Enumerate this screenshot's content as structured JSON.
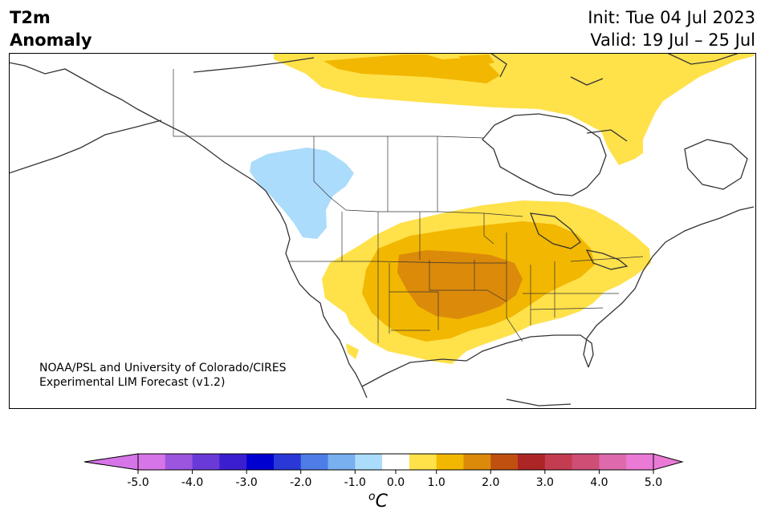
{
  "header": {
    "variable": "T2m",
    "variable_type": "Anomaly",
    "init_label": "Init: Tue 04 Jul 2023",
    "valid_label": "Valid: 19 Jul – 25 Jul"
  },
  "credit": {
    "line1": "NOAA/PSL and University of Colorado/CIRES",
    "line2": "Experimental LIM Forecast (v1.2)"
  },
  "colorbar": {
    "units_base": "C",
    "units_sup": "o",
    "tick_labels": [
      "-5.0",
      "-4.0",
      "-3.0",
      "-2.0",
      "-1.0",
      "0.0",
      "1.0",
      "2.0",
      "3.0",
      "4.0",
      "5.0"
    ],
    "levels": [
      -5.0,
      -4.5,
      -4.0,
      -3.5,
      -3.0,
      -2.5,
      -2.0,
      -1.5,
      -1.0,
      -0.5,
      0.5,
      1.0,
      1.5,
      2.0,
      2.5,
      3.0,
      3.5,
      4.0,
      4.5,
      5.0
    ],
    "colors": {
      "under": "#d675e8",
      "bins": [
        "#d675e8",
        "#9c55df",
        "#6a3ad8",
        "#3a1ed0",
        "#0000d0",
        "#2a38d8",
        "#4e7de8",
        "#78b0f0",
        "#acdcfc",
        "#ffffff",
        "#ffe14a",
        "#f2b700",
        "#dc8a0a",
        "#c05010",
        "#ad2626",
        "#c43c50",
        "#cf4e76",
        "#de6aad",
        "#ea7ad6"
      ],
      "over": "#ea7ad6"
    }
  },
  "map": {
    "colors": {
      "land_outline": "#333333",
      "warm_1": "#ffe14a",
      "warm_2": "#f2b700",
      "warm_3": "#dc8a0a",
      "cool_1": "#acdcfc"
    }
  }
}
